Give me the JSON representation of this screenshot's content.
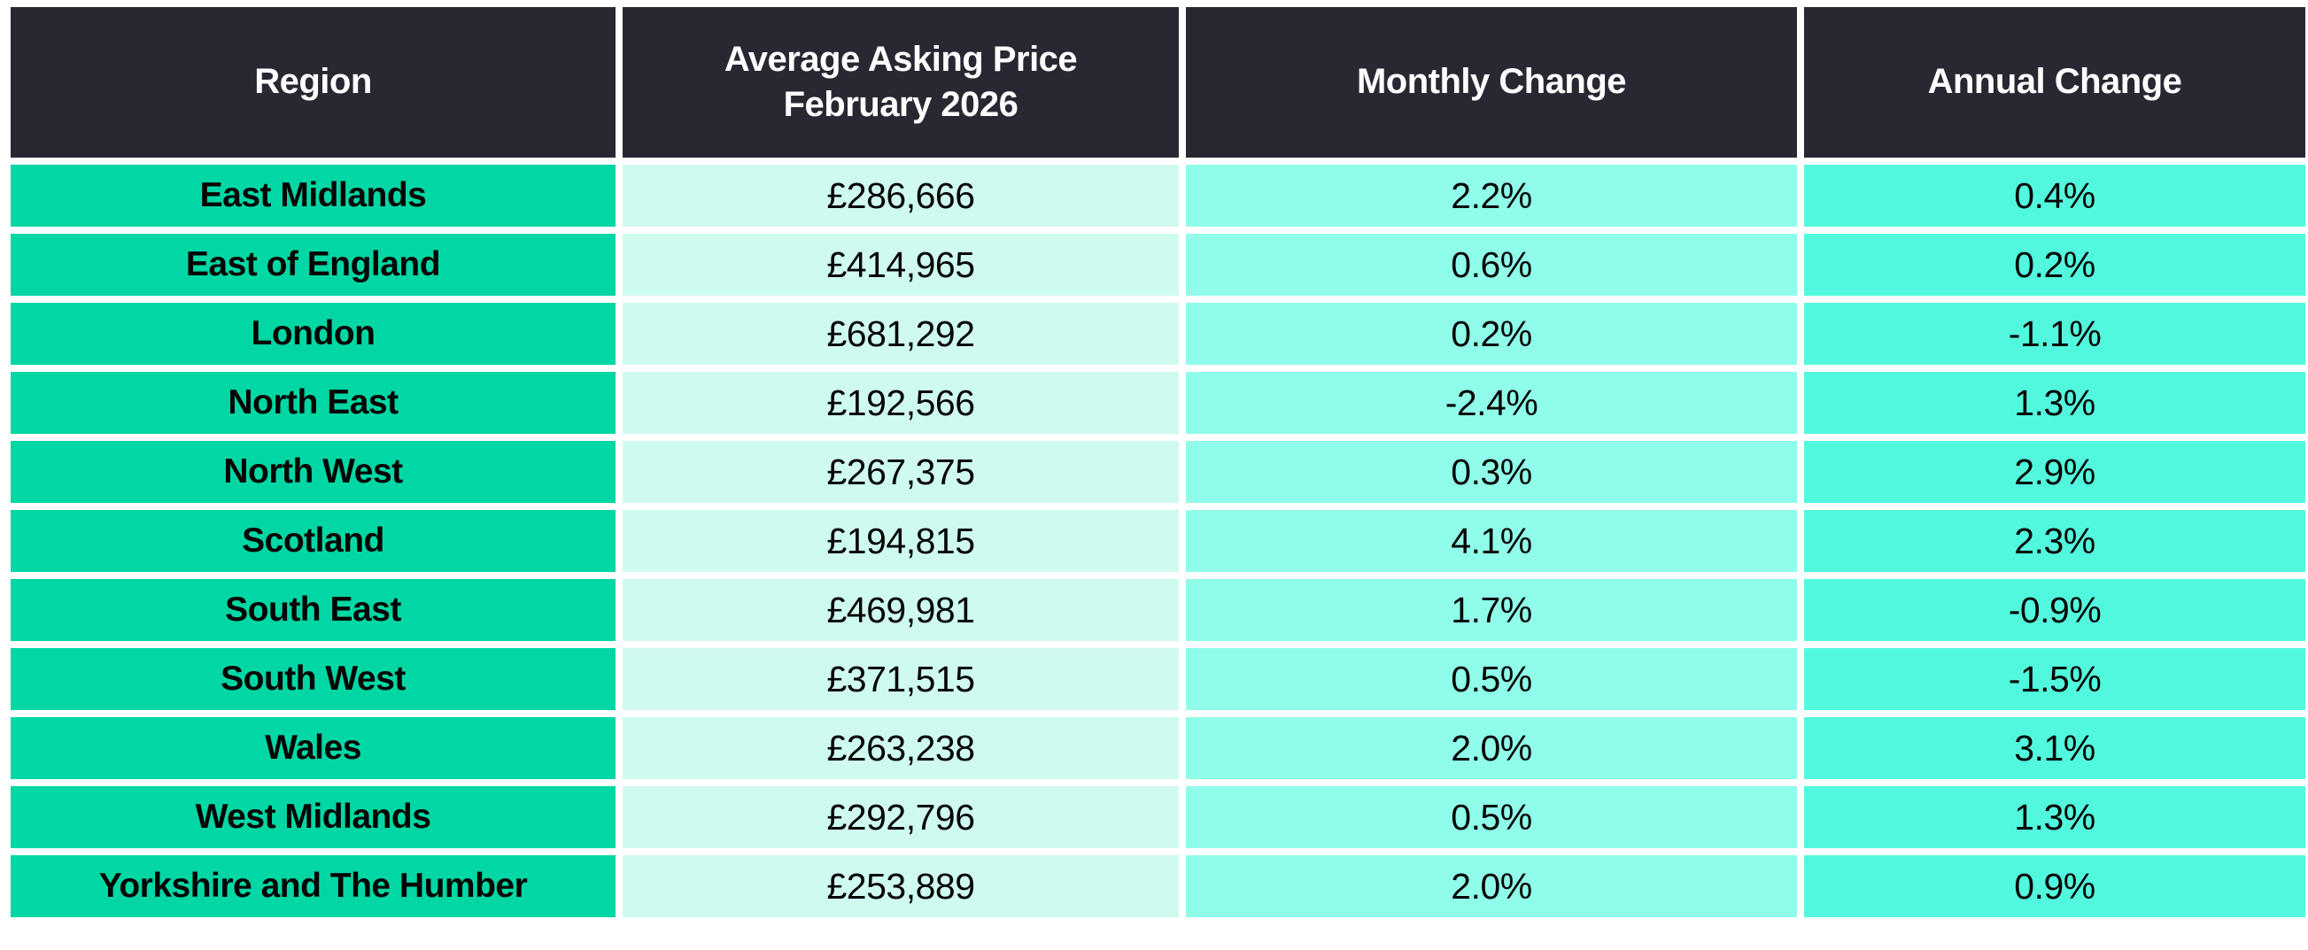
{
  "table": {
    "header": {
      "region": "Region",
      "price_line1": "Average Asking Price",
      "price_line2": "February 2026",
      "monthly": "Monthly Change",
      "annual": "Annual Change"
    },
    "rows": [
      {
        "region": "East Midlands",
        "price": "£286,666",
        "monthly": "2.2%",
        "annual": "0.4%"
      },
      {
        "region": "East of England",
        "price": "£414,965",
        "monthly": "0.6%",
        "annual": "0.2%"
      },
      {
        "region": "London",
        "price": "£681,292",
        "monthly": "0.2%",
        "annual": "-1.1%"
      },
      {
        "region": "North East",
        "price": "£192,566",
        "monthly": "-2.4%",
        "annual": "1.3%"
      },
      {
        "region": "North West",
        "price": "£267,375",
        "monthly": "0.3%",
        "annual": "2.9%"
      },
      {
        "region": "Scotland",
        "price": "£194,815",
        "monthly": "4.1%",
        "annual": "2.3%"
      },
      {
        "region": "South East",
        "price": "£469,981",
        "monthly": "1.7%",
        "annual": "-0.9%"
      },
      {
        "region": "South West",
        "price": "£371,515",
        "monthly": "0.5%",
        "annual": "-1.5%"
      },
      {
        "region": "Wales",
        "price": "£263,238",
        "monthly": "2.0%",
        "annual": "3.1%"
      },
      {
        "region": "West Midlands",
        "price": "£292,796",
        "monthly": "0.5%",
        "annual": "1.3%"
      },
      {
        "region": "Yorkshire and The Humber",
        "price": "£253,889",
        "monthly": "2.0%",
        "annual": "0.9%"
      }
    ]
  },
  "colors": {
    "header_bg": "#282833",
    "header_text": "#ffffff",
    "region_bg": "#00D7A4",
    "price_bg": "#CFFAF0",
    "monthly_bg": "#8FFDE9",
    "annual_bg": "#52F8DD",
    "cell_text": "#050505"
  },
  "chart_data": {
    "type": "table",
    "title": "",
    "columns": [
      "Region",
      "Average Asking Price February 2026",
      "Monthly Change",
      "Annual Change"
    ],
    "rows": [
      [
        "East Midlands",
        "£286,666",
        "2.2%",
        "0.4%"
      ],
      [
        "East of England",
        "£414,965",
        "0.6%",
        "0.2%"
      ],
      [
        "London",
        "£681,292",
        "0.2%",
        "-1.1%"
      ],
      [
        "North East",
        "£192,566",
        "-2.4%",
        "1.3%"
      ],
      [
        "North West",
        "£267,375",
        "0.3%",
        "2.9%"
      ],
      [
        "Scotland",
        "£194,815",
        "4.1%",
        "2.3%"
      ],
      [
        "South East",
        "£469,981",
        "1.7%",
        "-0.9%"
      ],
      [
        "South West",
        "£371,515",
        "0.5%",
        "-1.5%"
      ],
      [
        "Wales",
        "£263,238",
        "2.0%",
        "3.1%"
      ],
      [
        "West Midlands",
        "£292,796",
        "0.5%",
        "1.3%"
      ],
      [
        "Yorkshire and The Humber",
        "£253,889",
        "2.0%",
        "0.9%"
      ]
    ],
    "prices_numeric": [
      286666,
      414965,
      681292,
      192566,
      267375,
      194815,
      469981,
      371515,
      263238,
      292796,
      253889
    ],
    "monthly_change_pct": [
      2.2,
      0.6,
      0.2,
      -2.4,
      0.3,
      4.1,
      1.7,
      0.5,
      2.0,
      0.5,
      2.0
    ],
    "annual_change_pct": [
      0.4,
      0.2,
      -1.1,
      1.3,
      2.9,
      2.3,
      -0.9,
      -1.5,
      3.1,
      1.3,
      0.9
    ]
  }
}
